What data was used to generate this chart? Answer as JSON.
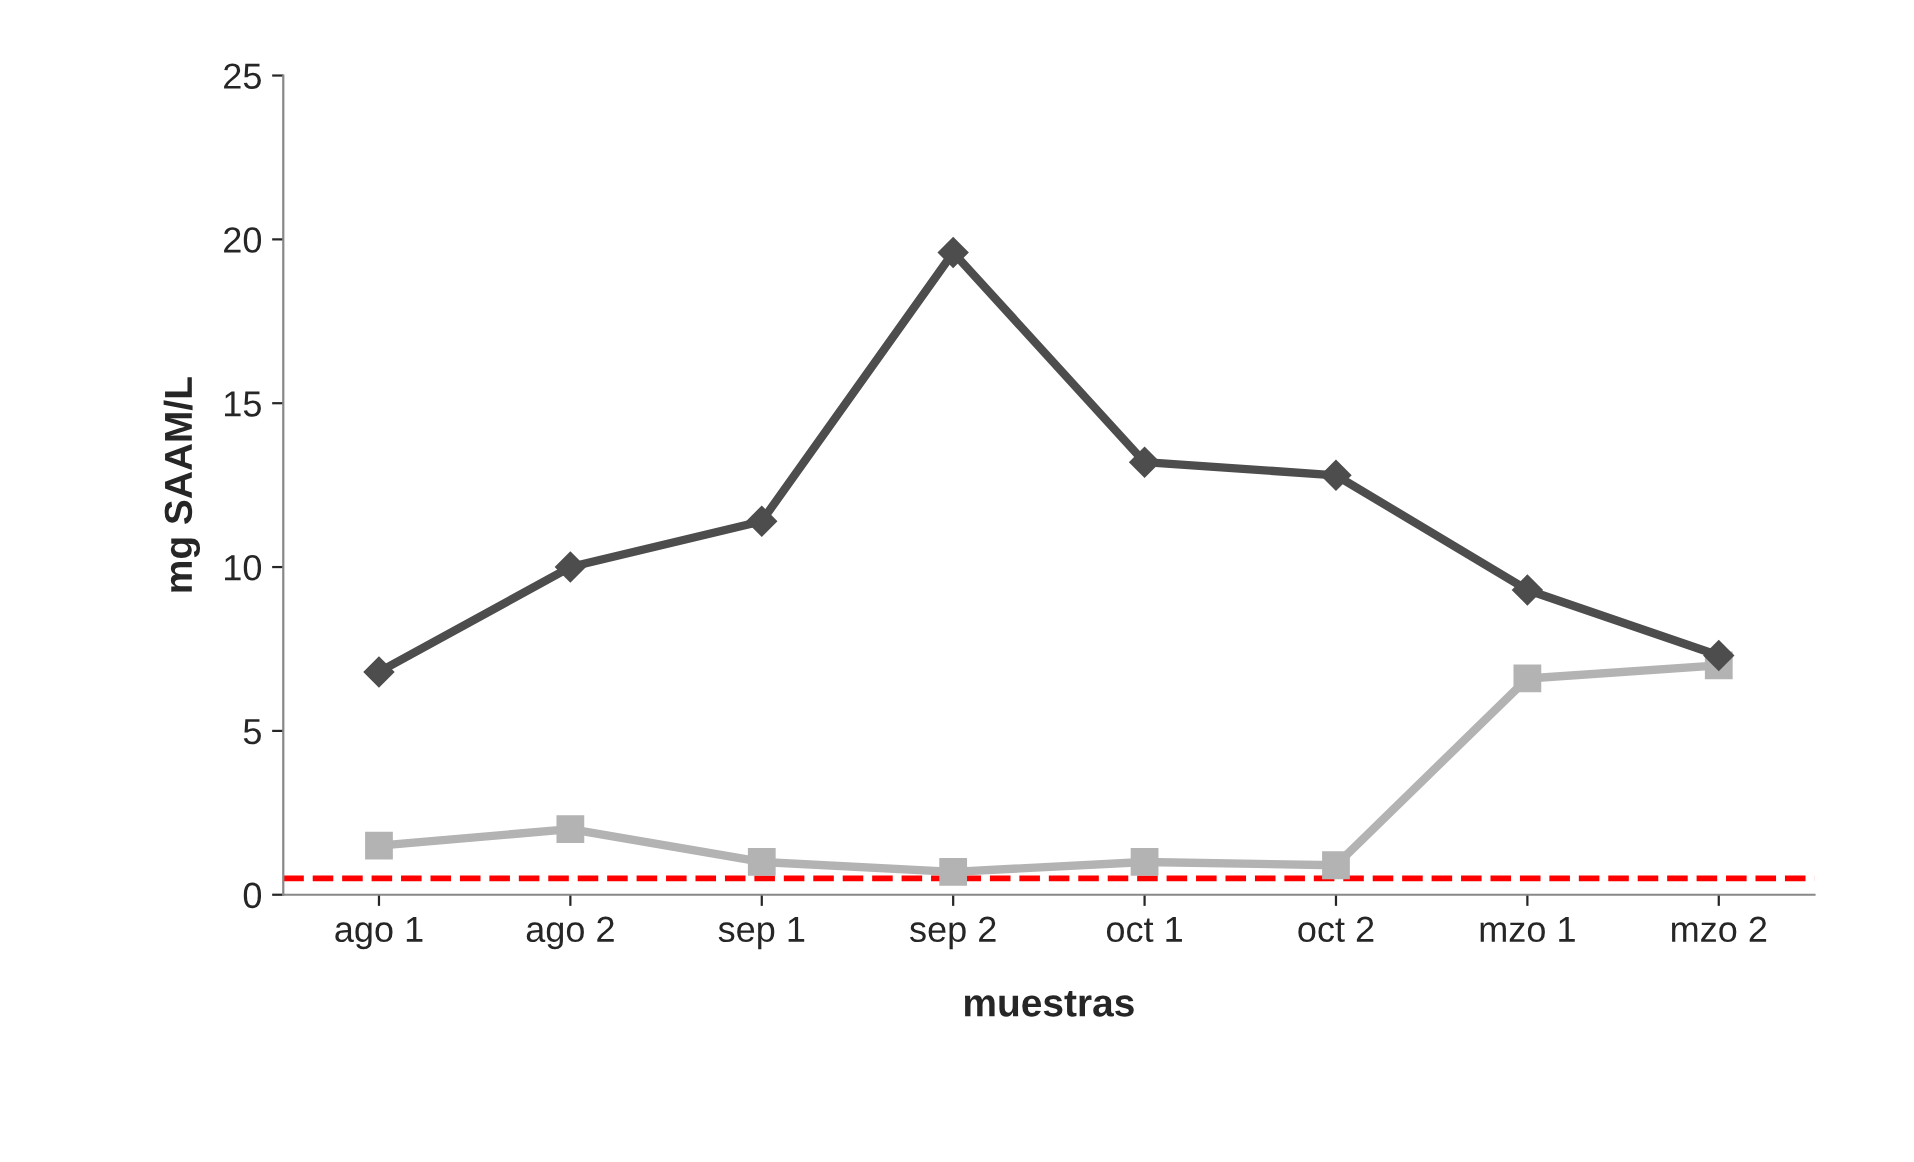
{
  "chart_data": {
    "type": "line",
    "xlabel": "muestras",
    "ylabel": "mg SAAM/L",
    "categories": [
      "ago 1",
      "ago 2",
      "sep 1",
      "sep 2",
      "oct 1",
      "oct 2",
      "mzo 1",
      "mzo 2"
    ],
    "series": [
      {
        "color": "#4d4d4d",
        "marker": "diamond",
        "values": [
          6.8,
          10.0,
          11.4,
          19.6,
          13.2,
          12.8,
          9.3,
          7.3
        ]
      },
      {
        "color": "#b3b3b3",
        "marker": "square",
        "values": [
          1.5,
          2.0,
          1.0,
          0.7,
          1.0,
          0.9,
          6.6,
          7.0
        ]
      }
    ],
    "ylim": [
      0,
      25
    ],
    "yticks": [
      0,
      5,
      10,
      15,
      20,
      25
    ],
    "grid": false,
    "legend": false,
    "line_style": "solid",
    "ref_lines": [
      {
        "axis": "y",
        "value": 0.5,
        "color": "#ff0000",
        "line_style": "dashed"
      }
    ]
  }
}
